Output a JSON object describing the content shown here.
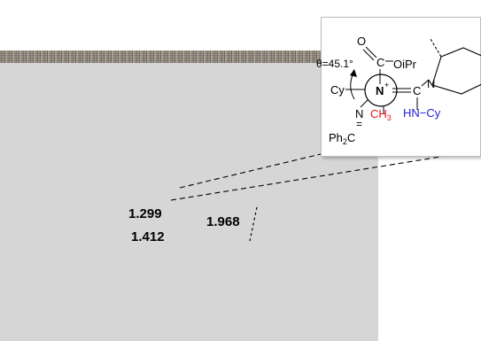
{
  "distances": {
    "d1": "1.299",
    "d2": "1.412",
    "d3": "1.968"
  },
  "inset": {
    "angle": "θ=45.1°",
    "ester_o": "O",
    "ester_oipr": "OiPr",
    "ester_c": "C",
    "pyrrolidine_n": "N",
    "cy_left": "Cy",
    "center_n": "N",
    "center_n_charge": "+",
    "enamine_c": "C",
    "imine_n": "N",
    "imine_db": "=",
    "ph2c_main": "Ph",
    "ph2c_sub": "2",
    "ph2c_c": "C",
    "methyl_main": "CH",
    "methyl_sub": "3",
    "hn": "HN",
    "hn_bond": "−",
    "hn_cy": "Cy"
  },
  "colors": {
    "methyl": "#e8141b",
    "amine": "#1f1fd6",
    "panel": "#d6d6d6"
  }
}
